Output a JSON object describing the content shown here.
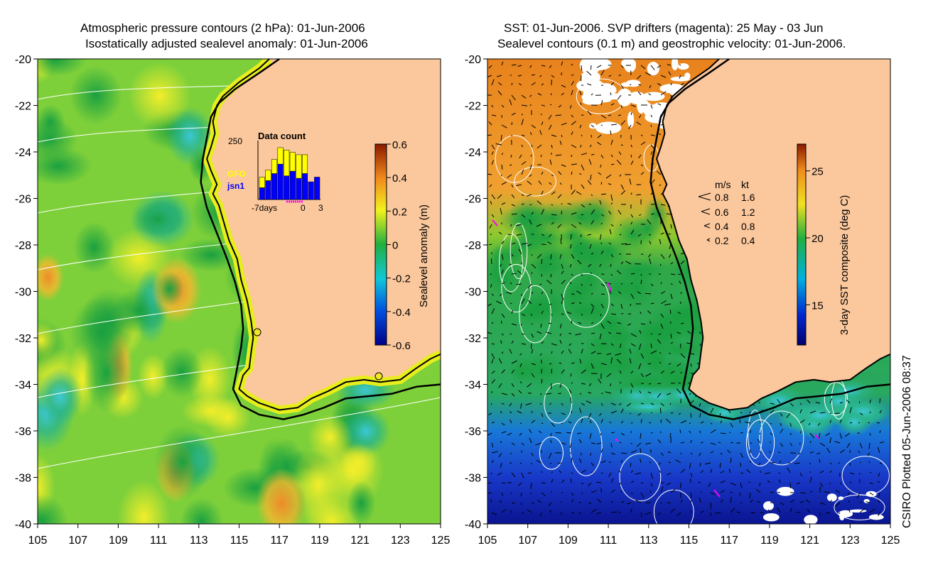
{
  "left_panel": {
    "title_line1": "Atmospheric pressure contours (2 hPa): 01-Jun-2006",
    "title_line2": "Isostatically adjusted sealevel anomaly: 01-Jun-2006",
    "x_ticks": [
      "105",
      "107",
      "109",
      "111",
      "113",
      "115",
      "117",
      "119",
      "121",
      "123",
      "125"
    ],
    "y_ticks": [
      "-20",
      "-22",
      "-24",
      "-26",
      "-28",
      "-30",
      "-32",
      "-34",
      "-36",
      "-38",
      "-40"
    ],
    "colorbar": {
      "label": "Sealevel anomaly (m)",
      "ticks": [
        "0.6",
        "0.4",
        "0.2",
        "0",
        "-0.2",
        "-0.4",
        "-0.6"
      ],
      "range": [
        -0.6,
        0.6
      ]
    },
    "data_count": {
      "title": "Data count",
      "y_max_label": "250",
      "legend_gfo": "GFO",
      "legend_jsn1": "jsn1",
      "x_labels": [
        "-7days",
        "0",
        "3"
      ],
      "gfo_color": "#ffff00",
      "jsn1_color": "#0000ff",
      "bars": [
        {
          "day": -7,
          "jsn1": 50,
          "gfo": 45
        },
        {
          "day": -6,
          "jsn1": 80,
          "gfo": 45
        },
        {
          "day": -5,
          "jsn1": 110,
          "gfo": 60
        },
        {
          "day": -4,
          "jsn1": 150,
          "gfo": 70
        },
        {
          "day": -3,
          "jsn1": 100,
          "gfo": 110
        },
        {
          "day": -2,
          "jsn1": 120,
          "gfo": 80
        },
        {
          "day": -1,
          "jsn1": 90,
          "gfo": 100
        },
        {
          "day": 0,
          "jsn1": 110,
          "gfo": 80
        },
        {
          "day": 1,
          "jsn1": 75,
          "gfo": 0
        },
        {
          "day": 2,
          "jsn1": 95,
          "gfo": 0
        }
      ]
    }
  },
  "right_panel": {
    "title_line1": "SST: 01-Jun-2006. SVP drifters (magenta): 25 May - 03 Jun",
    "title_line2": "Sealevel contours (0.1 m) and geostrophic velocity: 01-Jun-2006.",
    "x_ticks": [
      "105",
      "107",
      "109",
      "111",
      "113",
      "115",
      "117",
      "119",
      "121",
      "123",
      "125"
    ],
    "y_ticks": [
      "-20",
      "-22",
      "-24",
      "-26",
      "-28",
      "-30",
      "-32",
      "-34",
      "-36",
      "-38",
      "-40"
    ],
    "colorbar": {
      "label": "3-day SST composite (deg C)",
      "ticks": [
        "25",
        "20",
        "15"
      ],
      "range": [
        12,
        27
      ]
    },
    "velocity_legend": {
      "header_ms": "m/s",
      "header_kt": "kt",
      "rows": [
        {
          "ms": "0.8",
          "kt": "1.6"
        },
        {
          "ms": "0.6",
          "kt": "1.2"
        },
        {
          "ms": "0.4",
          "kt": "0.8"
        },
        {
          "ms": "0.2",
          "kt": "0.4"
        }
      ]
    }
  },
  "credit": "CSIRO Plotted 05-Jun-2006 08:37",
  "colors": {
    "land": "#fbc79c",
    "coast": "#000000",
    "contour": "#ffffff",
    "drifter": "#ff00ff"
  }
}
